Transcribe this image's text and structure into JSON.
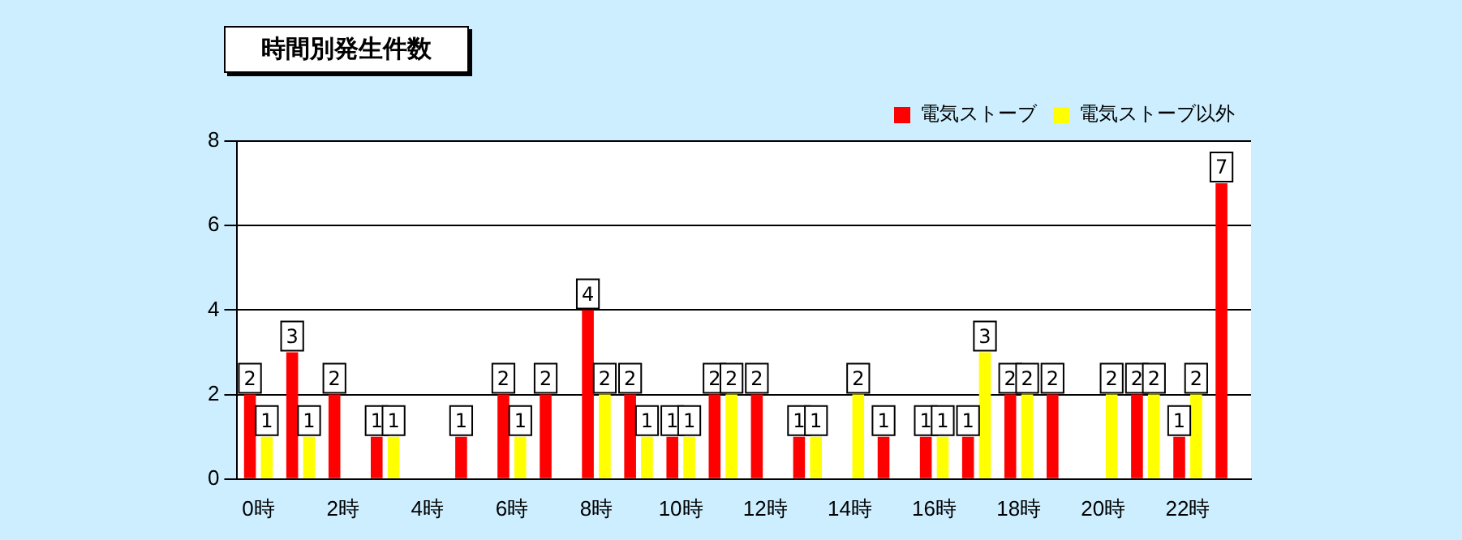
{
  "chart_data": {
    "type": "bar",
    "title": "時間別発生件数",
    "categories": [
      "0時",
      null,
      "2時",
      null,
      "4時",
      null,
      "6時",
      null,
      "8時",
      null,
      "10時",
      null,
      "12時",
      null,
      "14時",
      null,
      "16時",
      null,
      "18時",
      null,
      "20時",
      null,
      "22時",
      null
    ],
    "series": [
      {
        "name": "電気ストーブ",
        "color": "#ff0000",
        "values": [
          2,
          3,
          2,
          1,
          null,
          1,
          2,
          2,
          4,
          2,
          1,
          2,
          2,
          1,
          null,
          1,
          1,
          1,
          2,
          2,
          null,
          2,
          1,
          7
        ]
      },
      {
        "name": "電気ストーブ以外",
        "color": "#ffff00",
        "values": [
          1,
          1,
          null,
          1,
          null,
          null,
          1,
          null,
          2,
          1,
          1,
          2,
          null,
          1,
          2,
          null,
          1,
          3,
          2,
          null,
          2,
          2,
          2,
          null
        ]
      }
    ],
    "ylim": [
      0,
      8
    ],
    "yticks": [
      0,
      2,
      4,
      6,
      8
    ],
    "grid": "y",
    "legend": "top right",
    "data_labels": true
  }
}
